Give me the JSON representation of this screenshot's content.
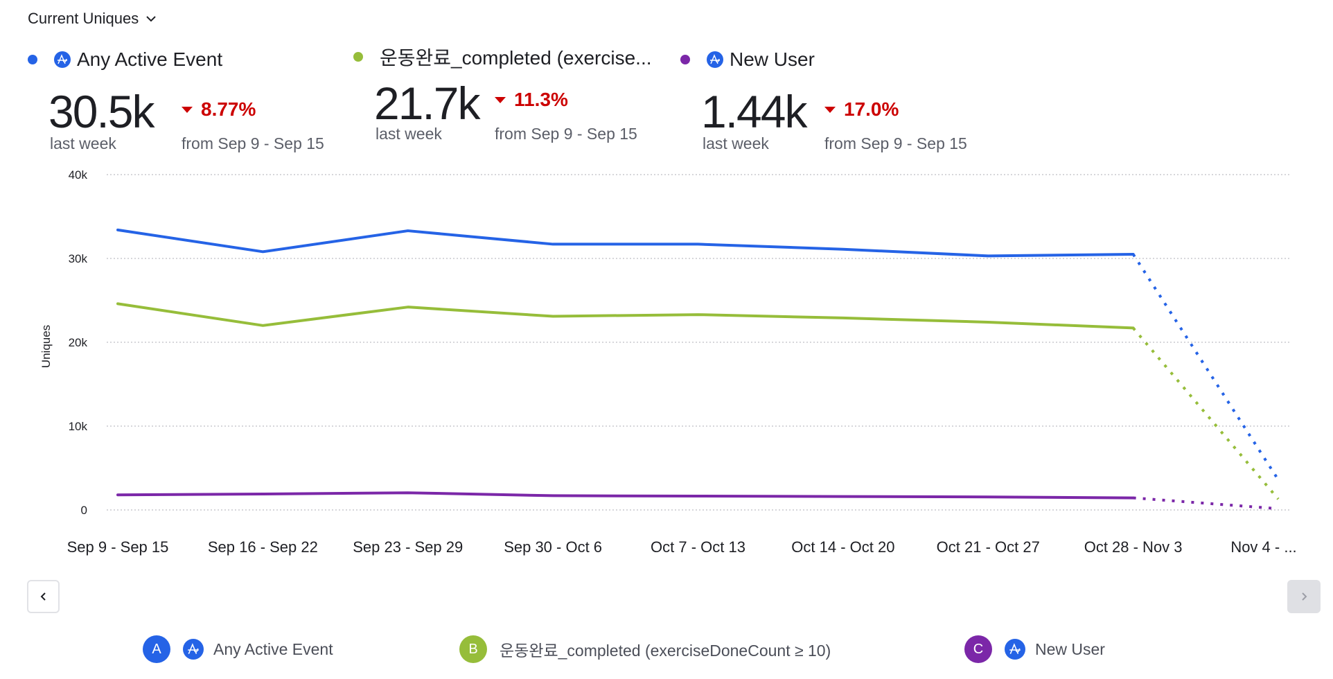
{
  "header": {
    "dropdown_label": "Current Uniques"
  },
  "metrics": [
    {
      "label": "Any Active Event",
      "color": "#2563e6",
      "has_event_icon": true,
      "value": "30.5k",
      "period": "last week",
      "delta": "8.77%",
      "delta_direction": "down",
      "comparison": "from Sep 9 - Sep 15"
    },
    {
      "label": "운동완료_completed (exercise...",
      "color": "#96bd3a",
      "has_event_icon": false,
      "value": "21.7k",
      "period": "last week",
      "delta": "11.3%",
      "delta_direction": "down",
      "comparison": "from Sep 9 - Sep 15"
    },
    {
      "label": "New User",
      "color": "#7b27a8",
      "has_event_icon": true,
      "value": "1.44k",
      "period": "last week",
      "delta": "17.0%",
      "delta_direction": "down",
      "comparison": "from Sep 9 - Sep 15"
    }
  ],
  "chart_data": {
    "type": "line",
    "title": "",
    "xlabel": "",
    "ylabel": "Uniques",
    "ylim": [
      0,
      40000
    ],
    "yticks": [
      0,
      10000,
      20000,
      30000,
      40000
    ],
    "ytick_labels": [
      "0",
      "10k",
      "20k",
      "30k",
      "40k"
    ],
    "grid": true,
    "categories": [
      "Sep 9 - Sep 15",
      "Sep 16 - Sep 22",
      "Sep 23 - Sep 29",
      "Sep 30 - Oct 6",
      "Oct 7 - Oct 13",
      "Oct 14 - Oct 20",
      "Oct 21 - Oct 27",
      "Oct 28 - Nov 3",
      "Nov 4 - ..."
    ],
    "incomplete_last_period": true,
    "series": [
      {
        "name": "Any Active Event",
        "letter": "A",
        "color": "#2563e6",
        "values": [
          33400,
          30800,
          33300,
          31700,
          31700,
          31100,
          30300,
          30500,
          3600
        ]
      },
      {
        "name": "운동완료_completed (exerciseDoneCount ≥ 10)",
        "letter": "B",
        "color": "#96bd3a",
        "values": [
          24600,
          22000,
          24200,
          23100,
          23300,
          22900,
          22400,
          21700,
          1300
        ]
      },
      {
        "name": "New User",
        "letter": "C",
        "color": "#7b27a8",
        "values": [
          1800,
          1900,
          2050,
          1700,
          1650,
          1600,
          1550,
          1440,
          150
        ]
      }
    ]
  },
  "legend": [
    {
      "letter": "A",
      "label": "Any Active Event",
      "color": "#2563e6",
      "has_event_icon": true
    },
    {
      "letter": "B",
      "label": "운동완료_completed (exerciseDoneCount ≥ 10)",
      "color": "#96bd3a",
      "has_event_icon": false
    },
    {
      "letter": "C",
      "label": "New User",
      "color": "#7b27a8",
      "has_event_icon": true
    }
  ],
  "nav": {
    "prev_icon": "chevron-left-icon",
    "next_icon": "chevron-right-icon",
    "next_disabled": true
  }
}
